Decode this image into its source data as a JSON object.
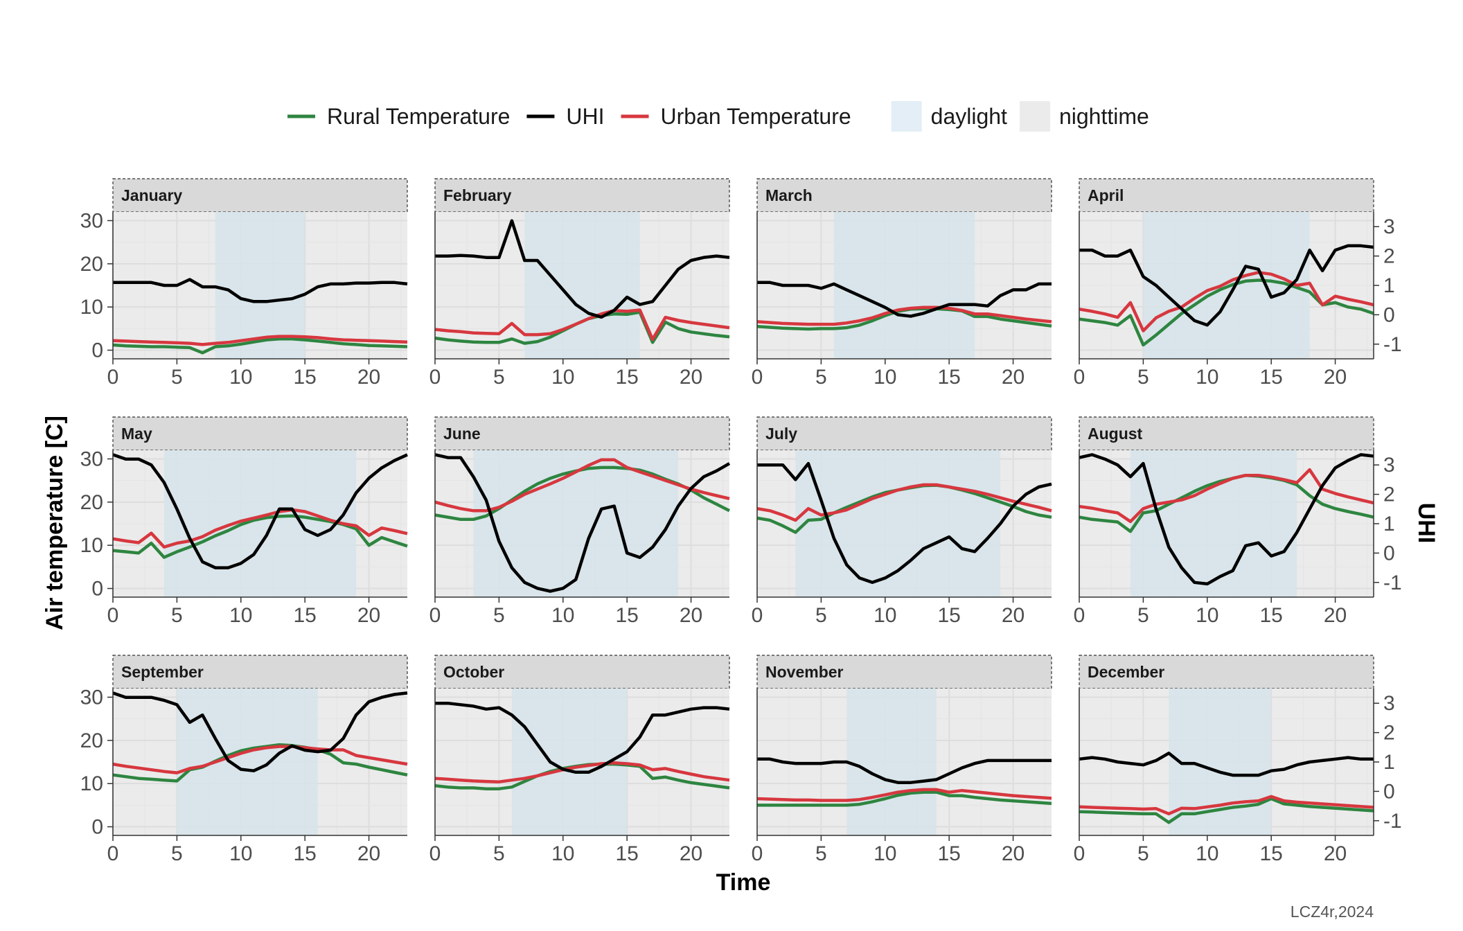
{
  "chart_data": {
    "type": "line",
    "ylabel": "Air temperature [C]",
    "xlabel": "Time",
    "y2label": "UHI",
    "caption": "LCZ4r,2024",
    "xlim": [
      0,
      23
    ],
    "ylim": [
      -2,
      32
    ],
    "y2lim": [
      -1.5,
      3.5
    ],
    "x_ticks": [
      "0",
      "5",
      "10",
      "15",
      "20"
    ],
    "y_ticks": [
      "0",
      "10",
      "20",
      "30"
    ],
    "y2_ticks": [
      "-1",
      "0",
      "1",
      "2",
      "3"
    ],
    "legend": {
      "position": "top",
      "lines": [
        {
          "name": "Rural Temperature",
          "color": "#2e8540"
        },
        {
          "name": "UHI",
          "color": "#000000"
        },
        {
          "name": "Urban Temperature",
          "color": "#d7373f"
        }
      ],
      "fills": [
        {
          "name": "daylight",
          "color": "#e3eef6"
        },
        {
          "name": "nighttime",
          "color": "#ebebeb"
        }
      ]
    },
    "colors": {
      "rural": "#2e8540",
      "uhi": "#000000",
      "urban": "#d7373f",
      "panel_bg": "#ebebeb",
      "daylight_band": "#d6e4ea",
      "strip_bg": "#d9d9d9",
      "grid": "#dddddd"
    },
    "x": [
      0,
      1,
      2,
      3,
      4,
      5,
      6,
      7,
      8,
      9,
      10,
      11,
      12,
      13,
      14,
      15,
      16,
      17,
      18,
      19,
      20,
      21,
      22,
      23
    ],
    "panels": [
      {
        "month": "January",
        "daylight": [
          8,
          15
        ],
        "rural": [
          1.2,
          1.0,
          0.9,
          0.8,
          0.8,
          0.7,
          0.6,
          -0.6,
          0.8,
          1.0,
          1.4,
          1.9,
          2.4,
          2.6,
          2.6,
          2.4,
          2.1,
          1.8,
          1.5,
          1.3,
          1.1,
          1.0,
          0.9,
          0.8
        ],
        "urban": [
          2.2,
          2.1,
          2.0,
          1.9,
          1.8,
          1.7,
          1.6,
          1.3,
          1.6,
          1.8,
          2.2,
          2.6,
          3.0,
          3.2,
          3.2,
          3.1,
          2.9,
          2.6,
          2.4,
          2.3,
          2.2,
          2.1,
          2.0,
          1.9
        ],
        "uhi": [
          1.1,
          1.1,
          1.1,
          1.1,
          1.0,
          1.0,
          1.2,
          0.95,
          0.95,
          0.85,
          0.55,
          0.45,
          0.45,
          0.5,
          0.55,
          0.7,
          0.95,
          1.05,
          1.05,
          1.08,
          1.08,
          1.1,
          1.1,
          1.05
        ]
      },
      {
        "month": "February",
        "daylight": [
          7,
          16
        ],
        "rural": [
          2.8,
          2.4,
          2.1,
          1.9,
          1.8,
          1.8,
          2.6,
          1.6,
          2.0,
          3.0,
          4.5,
          6.0,
          7.3,
          8.0,
          8.4,
          8.3,
          8.8,
          1.8,
          6.5,
          5.0,
          4.2,
          3.8,
          3.4,
          3.1
        ],
        "urban": [
          4.8,
          4.5,
          4.3,
          4.0,
          3.9,
          3.8,
          6.2,
          3.6,
          3.6,
          3.8,
          4.8,
          6.0,
          7.3,
          8.4,
          9.2,
          9.0,
          9.3,
          2.5,
          7.6,
          6.9,
          6.4,
          6.0,
          5.6,
          5.2
        ],
        "uhi": [
          2.0,
          2.0,
          2.02,
          2.0,
          1.95,
          1.95,
          3.2,
          1.85,
          1.85,
          1.35,
          0.85,
          0.35,
          0.05,
          -0.08,
          0.15,
          0.6,
          0.35,
          0.45,
          1.0,
          1.55,
          1.85,
          1.95,
          2.0,
          1.95
        ]
      },
      {
        "month": "March",
        "daylight": [
          6,
          17
        ],
        "rural": [
          5.5,
          5.3,
          5.1,
          5.0,
          4.9,
          5.0,
          5.0,
          5.2,
          5.8,
          6.8,
          8.0,
          9.0,
          9.5,
          9.6,
          9.6,
          9.4,
          9.1,
          7.8,
          7.8,
          7.2,
          6.8,
          6.4,
          6.0,
          5.6
        ],
        "urban": [
          6.6,
          6.4,
          6.2,
          6.1,
          6.0,
          6.0,
          6.0,
          6.3,
          6.8,
          7.5,
          8.5,
          9.3,
          9.7,
          9.9,
          9.9,
          9.7,
          9.2,
          8.4,
          8.4,
          8.0,
          7.6,
          7.2,
          6.9,
          6.6
        ],
        "uhi": [
          1.1,
          1.1,
          1.0,
          1.0,
          1.0,
          0.9,
          1.05,
          0.85,
          0.65,
          0.45,
          0.25,
          0.0,
          -0.05,
          0.05,
          0.2,
          0.35,
          0.35,
          0.35,
          0.3,
          0.65,
          0.85,
          0.85,
          1.05,
          1.05
        ]
      },
      {
        "month": "April",
        "daylight": [
          5,
          18
        ],
        "rural": [
          7.2,
          6.8,
          6.4,
          5.8,
          8.0,
          1.2,
          3.5,
          6.0,
          8.5,
          10.5,
          12.5,
          14.0,
          15.2,
          16.0,
          16.2,
          16.0,
          15.5,
          14.5,
          13.5,
          10.5,
          11.0,
          10.0,
          9.5,
          8.5
        ],
        "urban": [
          9.5,
          9.0,
          8.4,
          7.6,
          11.0,
          4.5,
          7.5,
          9.0,
          10.0,
          12.0,
          13.8,
          14.8,
          16.3,
          17.3,
          18.0,
          17.6,
          16.5,
          15.0,
          15.5,
          10.5,
          12.5,
          11.8,
          11.2,
          10.5
        ],
        "uhi": [
          2.2,
          2.2,
          2.0,
          2.0,
          2.2,
          1.3,
          1.0,
          0.6,
          0.2,
          -0.2,
          -0.35,
          0.1,
          0.85,
          1.65,
          1.55,
          0.6,
          0.75,
          1.2,
          2.2,
          1.5,
          2.2,
          2.35,
          2.35,
          2.3
        ]
      },
      {
        "month": "May",
        "daylight": [
          4,
          19
        ],
        "rural": [
          8.8,
          8.5,
          8.2,
          10.5,
          7.2,
          8.5,
          9.6,
          10.8,
          12.2,
          13.4,
          14.8,
          15.8,
          16.4,
          16.7,
          16.8,
          16.5,
          16.0,
          15.5,
          14.8,
          13.8,
          10.0,
          11.8,
          10.8,
          9.8
        ],
        "urban": [
          11.5,
          11.0,
          10.6,
          12.8,
          9.6,
          10.5,
          11.0,
          12.0,
          13.5,
          14.6,
          15.6,
          16.3,
          17.0,
          17.8,
          18.2,
          17.8,
          16.8,
          15.8,
          15.0,
          14.5,
          12.3,
          14.0,
          13.4,
          12.7
        ],
        "uhi": [
          3.35,
          3.2,
          3.2,
          3.0,
          2.4,
          1.5,
          0.5,
          -0.3,
          -0.5,
          -0.5,
          -0.35,
          -0.05,
          0.6,
          1.5,
          1.5,
          0.8,
          0.6,
          0.8,
          1.3,
          2.05,
          2.55,
          2.9,
          3.15,
          3.35
        ]
      },
      {
        "month": "June",
        "daylight": [
          3,
          19
        ],
        "rural": [
          17.0,
          16.5,
          16.0,
          16.0,
          16.8,
          18.5,
          20.5,
          22.5,
          24.2,
          25.5,
          26.5,
          27.2,
          27.8,
          28.0,
          28.0,
          27.8,
          27.4,
          26.5,
          25.3,
          24.2,
          22.8,
          21.0,
          19.5,
          18.0
        ],
        "urban": [
          20.0,
          19.2,
          18.5,
          18.0,
          18.0,
          18.8,
          20.2,
          21.8,
          23.0,
          24.2,
          25.5,
          27.0,
          28.5,
          29.8,
          29.8,
          28.0,
          27.0,
          26.0,
          25.0,
          24.0,
          23.0,
          22.2,
          21.5,
          20.8
        ],
        "uhi": [
          3.35,
          3.25,
          3.25,
          2.6,
          1.8,
          0.4,
          -0.5,
          -1.0,
          -1.2,
          -1.3,
          -1.2,
          -0.9,
          0.5,
          1.5,
          1.6,
          0.0,
          -0.15,
          0.2,
          0.8,
          1.6,
          2.2,
          2.6,
          2.8,
          3.05
        ]
      },
      {
        "month": "July",
        "daylight": [
          3,
          19
        ],
        "rural": [
          16.3,
          15.8,
          14.5,
          13.0,
          15.8,
          16.0,
          17.5,
          18.8,
          20.0,
          21.2,
          22.2,
          22.8,
          23.3,
          23.8,
          23.9,
          23.5,
          22.8,
          22.0,
          21.0,
          20.0,
          19.0,
          17.8,
          17.0,
          16.5
        ],
        "urban": [
          18.5,
          18.0,
          17.0,
          15.8,
          18.5,
          17.0,
          17.5,
          18.2,
          19.5,
          20.8,
          21.8,
          22.8,
          23.5,
          24.0,
          24.0,
          23.5,
          23.0,
          22.5,
          21.8,
          21.0,
          20.2,
          19.5,
          18.8,
          18.0
        ],
        "uhi": [
          3.0,
          3.0,
          3.0,
          2.5,
          3.05,
          1.8,
          0.5,
          -0.4,
          -0.85,
          -1.0,
          -0.85,
          -0.6,
          -0.25,
          0.15,
          0.35,
          0.55,
          0.15,
          0.05,
          0.5,
          1.0,
          1.6,
          2.0,
          2.25,
          2.35
        ]
      },
      {
        "month": "August",
        "daylight": [
          4,
          17
        ],
        "rural": [
          16.5,
          16.0,
          15.7,
          15.4,
          13.2,
          17.5,
          18.0,
          19.5,
          21.0,
          22.5,
          23.8,
          24.8,
          25.5,
          26.2,
          26.0,
          25.6,
          25.0,
          24.0,
          21.5,
          19.5,
          18.5,
          17.8,
          17.2,
          16.5
        ],
        "urban": [
          19.0,
          18.6,
          18.0,
          17.5,
          15.5,
          18.5,
          19.5,
          20.0,
          20.5,
          21.5,
          23.0,
          24.3,
          25.5,
          26.2,
          26.2,
          25.8,
          25.2,
          24.5,
          27.5,
          23.0,
          22.0,
          21.2,
          20.5,
          19.8
        ],
        "uhi": [
          3.25,
          3.35,
          3.2,
          3.0,
          2.6,
          3.05,
          1.5,
          0.2,
          -0.5,
          -1.0,
          -1.05,
          -0.8,
          -0.6,
          0.25,
          0.35,
          -0.1,
          0.05,
          0.7,
          1.5,
          2.3,
          2.9,
          3.15,
          3.35,
          3.3
        ]
      },
      {
        "month": "September",
        "daylight": [
          5,
          16
        ],
        "rural": [
          12.0,
          11.6,
          11.2,
          11.0,
          10.8,
          10.6,
          13.2,
          13.8,
          15.2,
          16.5,
          17.6,
          18.2,
          18.6,
          19.0,
          18.8,
          18.4,
          17.8,
          16.8,
          14.8,
          14.5,
          13.8,
          13.2,
          12.6,
          12.0
        ],
        "urban": [
          14.5,
          14.0,
          13.6,
          13.2,
          12.8,
          12.5,
          13.5,
          14.0,
          15.0,
          16.0,
          17.0,
          17.8,
          18.3,
          18.6,
          18.6,
          18.3,
          18.0,
          17.8,
          17.8,
          16.5,
          16.0,
          15.5,
          15.0,
          14.5
        ],
        "uhi": [
          3.35,
          3.2,
          3.2,
          3.2,
          3.1,
          2.95,
          2.35,
          2.6,
          1.8,
          1.05,
          0.75,
          0.7,
          0.9,
          1.3,
          1.55,
          1.4,
          1.35,
          1.4,
          1.8,
          2.6,
          3.05,
          3.2,
          3.3,
          3.35
        ]
      },
      {
        "month": "October",
        "daylight": [
          6,
          15
        ],
        "rural": [
          9.5,
          9.2,
          9.0,
          9.0,
          8.8,
          8.8,
          9.2,
          10.5,
          11.8,
          12.8,
          13.5,
          14.0,
          14.4,
          14.5,
          14.5,
          14.3,
          14.0,
          11.2,
          11.5,
          10.8,
          10.2,
          9.8,
          9.4,
          9.0
        ],
        "urban": [
          11.2,
          11.0,
          10.8,
          10.6,
          10.5,
          10.4,
          10.8,
          11.2,
          11.8,
          12.5,
          13.2,
          13.8,
          14.2,
          14.6,
          14.8,
          14.6,
          14.3,
          13.2,
          13.5,
          12.8,
          12.2,
          11.6,
          11.2,
          10.8
        ],
        "uhi": [
          3.0,
          3.0,
          2.95,
          2.9,
          2.8,
          2.85,
          2.6,
          2.2,
          1.6,
          1.0,
          0.75,
          0.65,
          0.65,
          0.85,
          1.1,
          1.35,
          1.85,
          2.6,
          2.6,
          2.7,
          2.8,
          2.85,
          2.85,
          2.8
        ]
      },
      {
        "month": "November",
        "daylight": [
          7,
          14
        ],
        "rural": [
          5.0,
          5.0,
          5.0,
          5.0,
          5.0,
          5.0,
          5.0,
          5.0,
          5.2,
          5.8,
          6.5,
          7.3,
          7.8,
          8.0,
          8.0,
          7.2,
          7.2,
          6.8,
          6.5,
          6.2,
          6.0,
          5.8,
          5.6,
          5.4
        ],
        "urban": [
          6.5,
          6.4,
          6.3,
          6.2,
          6.2,
          6.1,
          6.1,
          6.1,
          6.3,
          6.8,
          7.4,
          8.0,
          8.4,
          8.6,
          8.6,
          8.0,
          8.4,
          8.1,
          7.8,
          7.5,
          7.2,
          7.0,
          6.8,
          6.6
        ],
        "uhi": [
          1.1,
          1.1,
          1.0,
          0.95,
          0.95,
          0.95,
          1.0,
          1.0,
          0.85,
          0.6,
          0.4,
          0.3,
          0.3,
          0.35,
          0.4,
          0.6,
          0.8,
          0.95,
          1.05,
          1.05,
          1.05,
          1.05,
          1.05,
          1.05
        ]
      },
      {
        "month": "December",
        "daylight": [
          7,
          15
        ],
        "rural": [
          3.5,
          3.4,
          3.3,
          3.2,
          3.1,
          3.0,
          3.0,
          1.0,
          3.0,
          3.0,
          3.5,
          4.0,
          4.5,
          4.8,
          5.2,
          6.5,
          5.3,
          5.0,
          4.7,
          4.5,
          4.3,
          4.1,
          3.9,
          3.7
        ],
        "urban": [
          4.6,
          4.5,
          4.4,
          4.3,
          4.2,
          4.1,
          4.2,
          3.0,
          4.3,
          4.2,
          4.6,
          5.0,
          5.5,
          5.8,
          6.0,
          7.0,
          6.0,
          5.7,
          5.5,
          5.3,
          5.1,
          4.9,
          4.7,
          4.5
        ],
        "uhi": [
          1.1,
          1.15,
          1.1,
          1.0,
          0.95,
          0.9,
          1.05,
          1.3,
          0.95,
          0.95,
          0.8,
          0.65,
          0.55,
          0.55,
          0.55,
          0.7,
          0.75,
          0.9,
          1.0,
          1.05,
          1.1,
          1.15,
          1.1,
          1.1
        ]
      }
    ]
  }
}
